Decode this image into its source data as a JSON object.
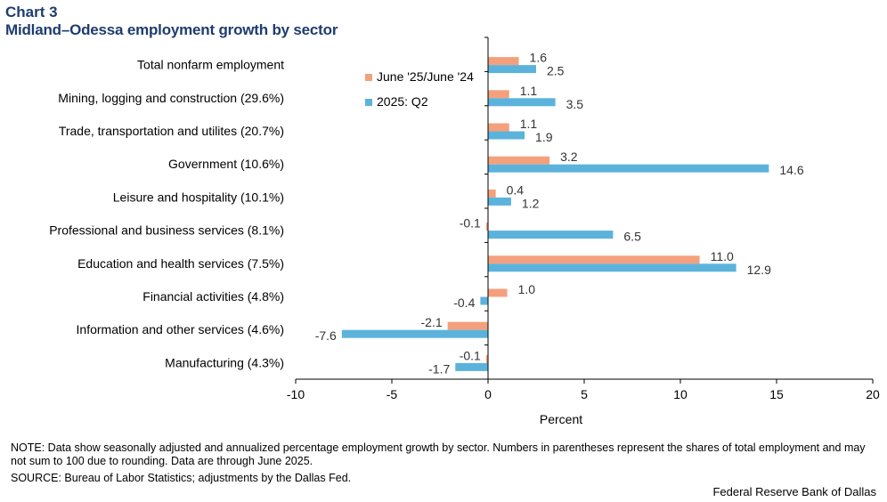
{
  "header": {
    "chart_number": "Chart 3",
    "title": "Midland–Odessa employment growth by sector"
  },
  "chart_data": {
    "type": "bar",
    "orientation": "horizontal",
    "title": "Midland–Odessa employment growth by sector",
    "xlabel": "Percent",
    "ylabel": "",
    "xlim": [
      -10,
      20
    ],
    "xticks": [
      -10,
      -5,
      0,
      5,
      10,
      15,
      20
    ],
    "xtick_labels": [
      "-10",
      "-5",
      "0",
      "5",
      "10",
      "15",
      "20"
    ],
    "grid": false,
    "legend_position": "top-left of plot",
    "categories": [
      "Total nonfarm employment",
      "Mining, logging and construction (29.6%)",
      "Trade, transportation and utilites (20.7%)",
      "Government (10.6%)",
      "Leisure and hospitality (10.1%)",
      "Professional and business services (8.1%)",
      "Education and health services (7.5%)",
      "Financial activities (4.8%)",
      "Information and other services (4.6%)",
      "Manufacturing (4.3%)"
    ],
    "series": [
      {
        "name": "June '25/June '24",
        "color": "#f4a07c",
        "values": [
          1.6,
          1.1,
          1.1,
          3.2,
          0.4,
          -0.1,
          11.0,
          1.0,
          -2.1,
          -0.1
        ],
        "labels": [
          "1.6",
          "1.1",
          "1.1",
          "3.2",
          "0.4",
          "-0.1",
          "11.0",
          "1.0",
          "-2.1",
          "-0.1"
        ]
      },
      {
        "name": "2025: Q2",
        "color": "#5bb3dc",
        "values": [
          2.5,
          3.5,
          1.9,
          14.6,
          1.2,
          6.5,
          12.9,
          -0.4,
          -7.6,
          -1.7
        ],
        "labels": [
          "2.5",
          "3.5",
          "1.9",
          "14.6",
          "1.2",
          "6.5",
          "12.9",
          "-0.4",
          "-7.6",
          "-1.7"
        ]
      }
    ]
  },
  "footer": {
    "note": "NOTE: Data show seasonally adjusted and annualized percentage employment growth by sector. Numbers in parentheses represent the shares of total employment and may not sum to 100 due to rounding.  Data are through June 2025.",
    "source": "SOURCE: Bureau of Labor Statistics; adjustments by the Dallas Fed.",
    "credit": "Federal Reserve Bank of Dallas"
  }
}
